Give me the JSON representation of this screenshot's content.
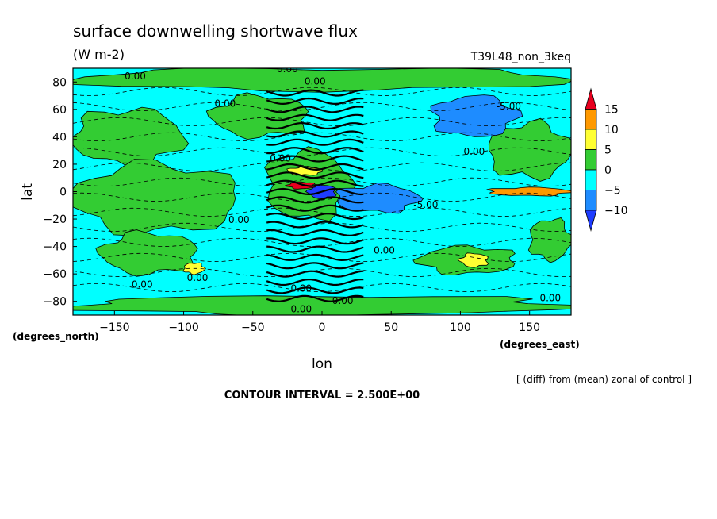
{
  "chart_data": {
    "type": "heatmap",
    "title": "surface downwelling shortwave flux",
    "units": "(W m-2)",
    "run_label": "T39L48_non_3keq",
    "xlabel": "lon",
    "ylabel": "lat",
    "x_unit_label": "(degrees_east)",
    "y_unit_label": "(degrees_north)",
    "xlim": [
      -180,
      180
    ],
    "ylim": [
      -90,
      90
    ],
    "x_ticks": [
      -150,
      -100,
      -50,
      0,
      50,
      100,
      150
    ],
    "y_ticks": [
      -80,
      -60,
      -40,
      -20,
      0,
      20,
      40,
      60,
      80
    ],
    "contour_interval_text": "CONTOUR INTERVAL = 2.500E+00",
    "note": "[ (diff) from (mean) zonal of control ]",
    "contour_label_text": "0.00",
    "contour_label_neg": "-5.00",
    "colorbar": {
      "levels": [
        15,
        10,
        5,
        0,
        -5,
        -10
      ],
      "bins": [
        {
          "color": "#e8001e",
          "range": ">15"
        },
        {
          "color": "#ff9900",
          "range": "10 to 15"
        },
        {
          "color": "#ffff33",
          "range": "5 to 10"
        },
        {
          "color": "#33cc33",
          "range": "0 to 5"
        },
        {
          "color": "#00ffff",
          "range": "-5 to 0"
        },
        {
          "color": "#1e8cff",
          "range": "-10 to -5"
        },
        {
          "color": "#1e3cff",
          "range": "<-10"
        }
      ]
    },
    "regions": [
      {
        "name": "polar-north-green",
        "level": 2,
        "lon": [
          -180,
          180
        ],
        "lat": [
          74,
          90
        ]
      },
      {
        "name": "polar-south-green",
        "level": 2,
        "lon": [
          -180,
          180
        ],
        "lat": [
          -90,
          -76
        ]
      },
      {
        "name": "north-mid-green-west",
        "level": 2,
        "lon": [
          -180,
          -100
        ],
        "lat": [
          20,
          60
        ]
      },
      {
        "name": "north-mid-green-center",
        "level": 2,
        "lon": [
          -80,
          -10
        ],
        "lat": [
          40,
          70
        ]
      },
      {
        "name": "north-mid-green-east",
        "level": 2,
        "lon": [
          120,
          180
        ],
        "lat": [
          10,
          50
        ]
      },
      {
        "name": "tropical-green-west",
        "level": 2,
        "lon": [
          -180,
          -60
        ],
        "lat": [
          -30,
          20
        ]
      },
      {
        "name": "tropical-green-center",
        "level": 2,
        "lon": [
          -40,
          20
        ],
        "lat": [
          -20,
          30
        ]
      },
      {
        "name": "south-mid-green-west",
        "level": 2,
        "lon": [
          -160,
          -90
        ],
        "lat": [
          -60,
          -30
        ]
      },
      {
        "name": "south-mid-green-east",
        "level": 2,
        "lon": [
          70,
          140
        ],
        "lat": [
          -60,
          -40
        ]
      },
      {
        "name": "south-mid-green-far-east",
        "level": 2,
        "lon": [
          150,
          180
        ],
        "lat": [
          -50,
          -20
        ]
      },
      {
        "name": "tropical-blue-east",
        "level": 1,
        "lon": [
          10,
          70
        ],
        "lat": [
          -15,
          5
        ]
      },
      {
        "name": "tropical-blue-center",
        "level": 0,
        "lon": [
          -10,
          10
        ],
        "lat": [
          -5,
          5
        ]
      },
      {
        "name": "north-blue-east",
        "level": 1,
        "lon": [
          80,
          140
        ],
        "lat": [
          40,
          70
        ]
      },
      {
        "name": "equator-orange-east",
        "level": 4,
        "lon": [
          120,
          180
        ],
        "lat": [
          -3,
          3
        ]
      },
      {
        "name": "equator-red-center",
        "level": 5,
        "lon": [
          -25,
          -5
        ],
        "lat": [
          2,
          7
        ]
      },
      {
        "name": "south-yellow-west",
        "level": 3,
        "lon": [
          -100,
          -85
        ],
        "lat": [
          -60,
          -52
        ]
      },
      {
        "name": "south-yellow-east",
        "level": 3,
        "lon": [
          100,
          120
        ],
        "lat": [
          -55,
          -45
        ]
      },
      {
        "name": "north-yellow-center",
        "level": 3,
        "lon": [
          -25,
          0
        ],
        "lat": [
          12,
          18
        ]
      }
    ],
    "contour_labels": [
      {
        "lon": -135,
        "lat": 82,
        "text_key": "zero"
      },
      {
        "lon": -25,
        "lat": 87,
        "text_key": "zero"
      },
      {
        "lon": -5,
        "lat": 78,
        "text_key": "zero"
      },
      {
        "lon": -70,
        "lat": 62,
        "text_key": "zero"
      },
      {
        "lon": 135,
        "lat": 60,
        "text_key": "neg"
      },
      {
        "lon": 110,
        "lat": 27,
        "text_key": "zero"
      },
      {
        "lon": -30,
        "lat": 22,
        "text_key": "zero"
      },
      {
        "lon": 75,
        "lat": -12,
        "text_key": "neg"
      },
      {
        "lon": -60,
        "lat": -23,
        "text_key": "zero"
      },
      {
        "lon": 45,
        "lat": -45,
        "text_key": "zero"
      },
      {
        "lon": -130,
        "lat": -70,
        "text_key": "zero"
      },
      {
        "lon": -90,
        "lat": -65,
        "text_key": "zero"
      },
      {
        "lon": -15,
        "lat": -73,
        "text_key": "zero"
      },
      {
        "lon": 15,
        "lat": -82,
        "text_key": "zero"
      },
      {
        "lon": -15,
        "lat": -88,
        "text_key": "zero"
      },
      {
        "lon": 165,
        "lat": -80,
        "text_key": "zero"
      }
    ]
  }
}
